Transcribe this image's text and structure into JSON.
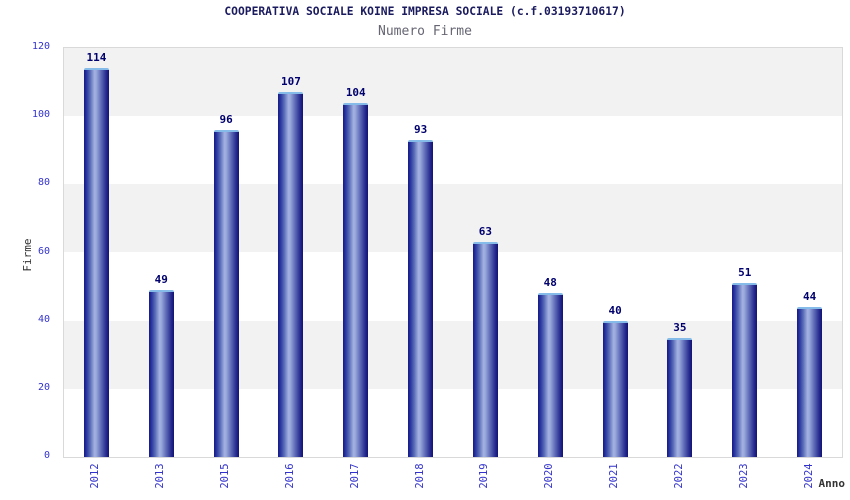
{
  "header": {
    "title": "COOPERATIVA SOCIALE KOINE IMPRESA SOCIALE (c.f.03193710617)",
    "subtitle": "Numero Firme"
  },
  "chart_data": {
    "type": "bar",
    "title": "COOPERATIVA SOCIALE KOINE IMPRESA SOCIALE (c.f.03193710617)",
    "subtitle": "Numero Firme",
    "xlabel": "Anno",
    "ylabel": "Firme",
    "categories": [
      "2012",
      "2013",
      "2015",
      "2016",
      "2017",
      "2018",
      "2019",
      "2020",
      "2021",
      "2022",
      "2023",
      "2024"
    ],
    "values": [
      114,
      49,
      96,
      107,
      104,
      93,
      63,
      48,
      40,
      35,
      51,
      44
    ],
    "ylim": [
      0,
      120
    ],
    "yticks": [
      0,
      20,
      40,
      60,
      80,
      100,
      120
    ],
    "grid": "alternating-horizontal-bands",
    "legend": "none",
    "colors": {
      "bar_dark": "#191985",
      "bar_highlight": "#a4b2e2",
      "bar_cap": "#85bbe8",
      "value_label": "#00006e",
      "tick_label": "#3333cc",
      "band_gray": "#f2f2f2",
      "band_white": "#ffffff",
      "plot_border": "#d9d9d9",
      "title_color": "#1a1a5e",
      "subtitle_color": "#666673",
      "axis_title_color": "#333333"
    }
  }
}
